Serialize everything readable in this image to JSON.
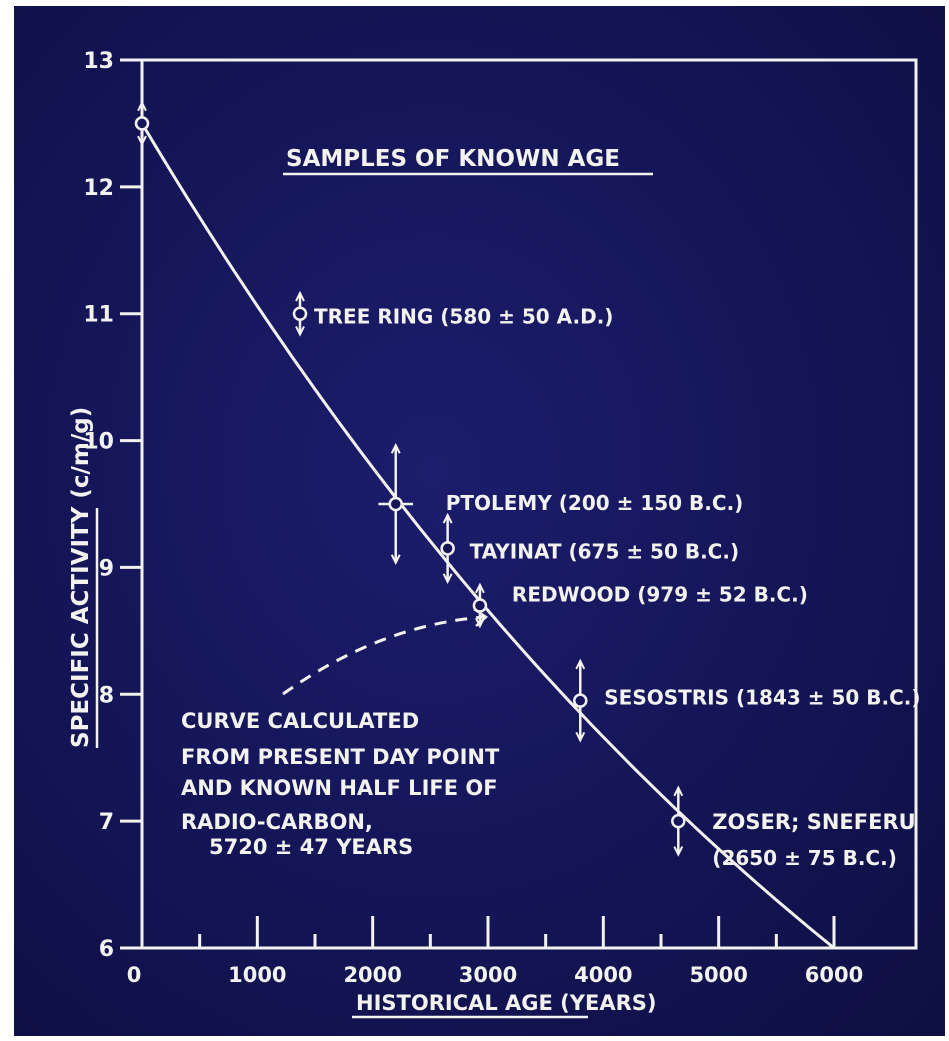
{
  "chart_data": {
    "type": "scatter",
    "title": "SAMPLES OF KNOWN AGE",
    "xlabel": "HISTORICAL AGE (YEARS)",
    "ylabel_main": "SPECIFIC ACTIVITY",
    "ylabel_unit": "(c/m/g)",
    "xlim": [
      0,
      6000
    ],
    "ylim": [
      6,
      13
    ],
    "x_ticks": [
      0,
      1000,
      2000,
      3000,
      4000,
      5000,
      6000
    ],
    "y_ticks": [
      6,
      7,
      8,
      9,
      10,
      11,
      12,
      13
    ],
    "x_minor_ticks": [
      500,
      1500,
      2500,
      3500,
      4500,
      5500
    ],
    "grid": false,
    "colors": {
      "background": "#15165a",
      "ink": "#f2f2ee"
    },
    "curve": {
      "type": "exponential_decay",
      "x": [
        0,
        6000
      ],
      "y": [
        12.5,
        6.0
      ],
      "annotation": [
        "CURVE CALCULATED",
        "FROM PRESENT DAY POINT",
        "AND KNOWN HALF LIFE OF",
        "RADIO-CARBON,",
        "5720 ± 47 YEARS"
      ]
    },
    "points": [
      {
        "x": 0,
        "y": 12.5,
        "yerr": 0.1,
        "xerr": 0,
        "label": ""
      },
      {
        "x": 1370,
        "y": 11.0,
        "yerr": 0.1,
        "xerr": 0,
        "label": "TREE RING (580 ± 50 A.D.)"
      },
      {
        "x": 2200,
        "y": 9.5,
        "yerr": 0.4,
        "xerr": 150,
        "label": "PTOLEMY (200 ± 150 B.C.)"
      },
      {
        "x": 2650,
        "y": 9.15,
        "yerr": 0.2,
        "xerr": 0,
        "label": "TAYINAT (675 ± 50 B.C.)"
      },
      {
        "x": 2930,
        "y": 8.7,
        "yerr": 0.1,
        "xerr": 0,
        "label": "REDWOOD (979 ± 52 B.C.)"
      },
      {
        "x": 3800,
        "y": 7.95,
        "yerr": 0.25,
        "xerr": 0,
        "label": "SESOSTRIS (1843 ± 50 B.C.)"
      },
      {
        "x": 4650,
        "y": 7.0,
        "yerr": 0.2,
        "xerr": 0,
        "label": "ZOSER; SNEFERU (2650 ± 75 B.C.)"
      }
    ]
  }
}
